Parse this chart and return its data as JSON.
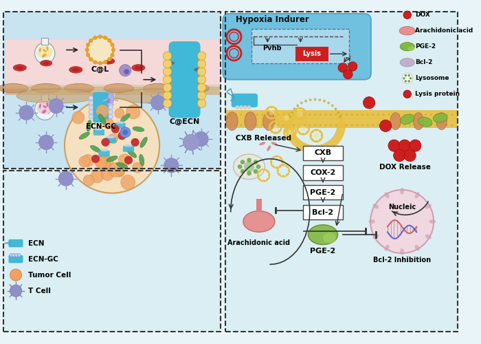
{
  "bg_color": "#e8f4f8",
  "panel_bg_tl": "#c8e4f0",
  "panel_bg_bl": "#daeef3",
  "panel_bg_r": "#daeef3",
  "blood_bg": "#f5d5d5",
  "vessel_color": "#c8a060",
  "membrane_color": "#e8c040",
  "hypoxia_cell_color": "#70c8e8",
  "lysis_color": "#cc2020",
  "dox_color": "#cc2020",
  "liposome_color": "#e8a030",
  "ecn_color": "#40b8d8",
  "ecngc_bead_color": "#d0d0f0",
  "tumor_fill": "#f5e0c0",
  "tumor_border": "#c8a060",
  "orange_cell": "#f0a060",
  "green_bac": "#50a050",
  "red_dot": "#cc3333",
  "tcell_color": "#9090c8",
  "rbc_color": "#cc3333",
  "arachidonic_color": "#e89090",
  "pge2_color": "#80b840",
  "bcl2_color": "#c0b0cc",
  "nucleus_color": "#f0d8e0",
  "nucleus_border": "#d0a0b0",
  "legend_items": [
    "DOX",
    "Arachidonic acid",
    "PGE-2",
    "Bcl-2",
    "Lysosome",
    "Lysis protein"
  ],
  "legend_colors": [
    "#cc2020",
    "#e89090",
    "#80b840",
    "#c0b0cc",
    "#f0f0e8",
    "#cc2020"
  ],
  "box_labels": [
    "CXB",
    "COX-2",
    "PGE-2",
    "Bcl-2"
  ]
}
